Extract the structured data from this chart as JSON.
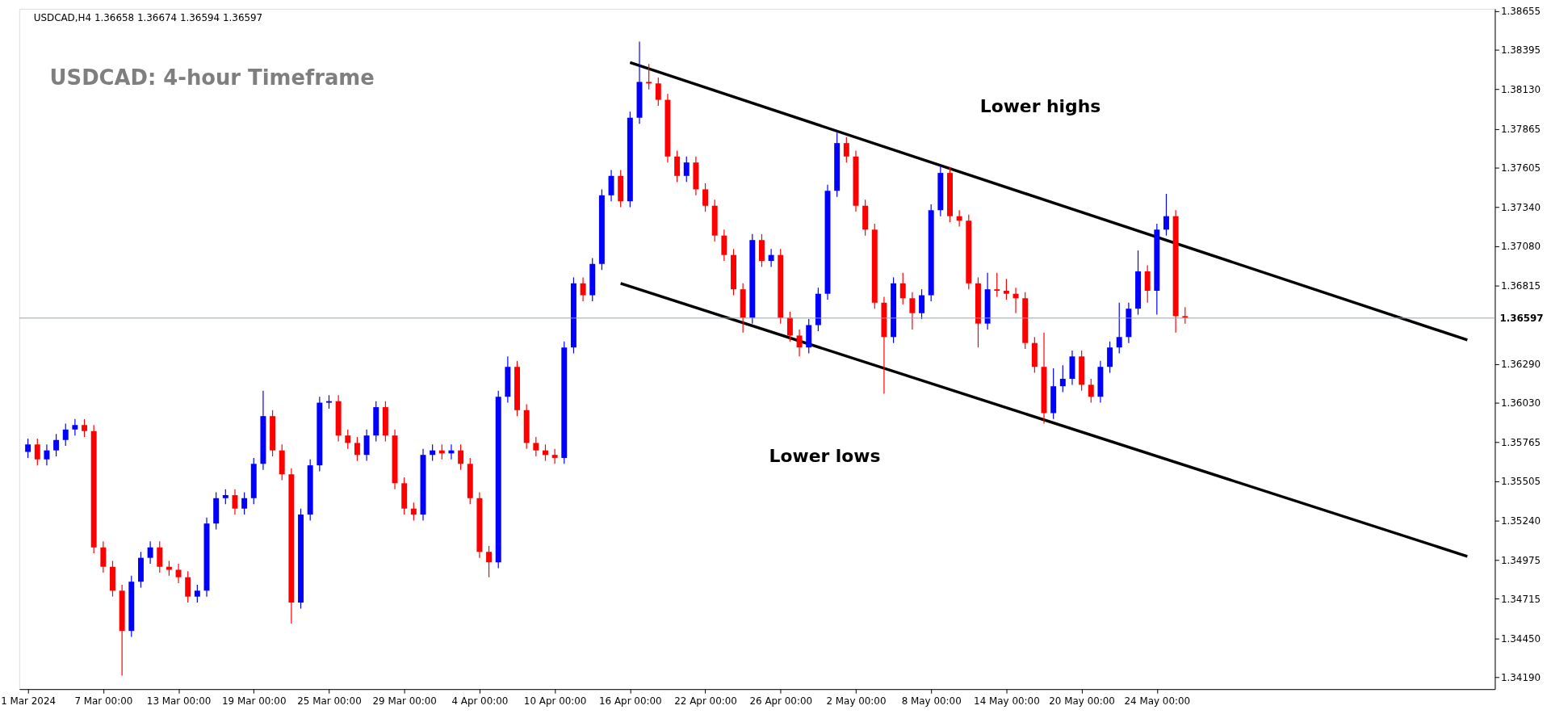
{
  "chart_data": {
    "type": "candlestick",
    "title": "USDCAD: 4-hour Timeframe",
    "annotations": [
      "USDCAD,H4  1.36658 1.36674 1.36594 1.36597",
      "Lower highs",
      "Lower lows"
    ],
    "categories": [
      "1 Mar 2024",
      null,
      null,
      null,
      null,
      null,
      null,
      null,
      "7 Mar 00:00",
      null,
      null,
      null,
      null,
      null,
      null,
      null,
      "13 Mar 00:00",
      null,
      null,
      null,
      null,
      null,
      null,
      null,
      "19 Mar 00:00",
      null,
      null,
      null,
      null,
      null,
      null,
      null,
      "25 Mar 00:00",
      null,
      null,
      null,
      null,
      null,
      null,
      null,
      "29 Mar 00:00",
      null,
      null,
      null,
      null,
      null,
      null,
      null,
      "4 Apr 00:00",
      null,
      null,
      null,
      null,
      null,
      null,
      null,
      "10 Apr 00:00",
      null,
      null,
      null,
      null,
      null,
      null,
      null,
      "16 Apr 00:00",
      null,
      null,
      null,
      null,
      null,
      null,
      null,
      "22 Apr 00:00",
      null,
      null,
      null,
      null,
      null,
      null,
      null,
      "26 Apr 00:00",
      null,
      null,
      null,
      null,
      null,
      null,
      null,
      "2 May 00:00",
      null,
      null,
      null,
      null,
      null,
      null,
      null,
      "8 May 00:00",
      null,
      null,
      null,
      null,
      null,
      null,
      null,
      "14 May 00:00",
      null,
      null,
      null,
      null,
      null,
      null,
      null,
      "20 May 00:00",
      null,
      null,
      null,
      null,
      null,
      null,
      null,
      "24 May 00:00",
      null,
      null,
      null,
      null,
      null,
      null,
      null,
      null,
      null,
      null,
      null,
      null,
      null,
      null,
      null,
      null,
      null,
      null,
      null,
      null,
      null,
      null,
      null,
      null,
      null,
      null,
      null,
      null,
      null,
      null,
      null,
      null,
      null,
      null,
      null
    ],
    "ohlc": [
      [
        1.357,
        1.3579,
        1.3566,
        1.3575
      ],
      [
        1.3575,
        1.3579,
        1.3561,
        1.3565
      ],
      [
        1.3565,
        1.3575,
        1.3561,
        1.3571
      ],
      [
        1.3571,
        1.3582,
        1.3567,
        1.3578
      ],
      [
        1.3578,
        1.3589,
        1.3574,
        1.3585
      ],
      [
        1.3585,
        1.3592,
        1.3581,
        1.3588
      ],
      [
        1.3588,
        1.3592,
        1.358,
        1.3584
      ],
      [
        1.3584,
        1.3588,
        1.3502,
        1.3506
      ],
      [
        1.3506,
        1.351,
        1.3489,
        1.3493
      ],
      [
        1.3493,
        1.3497,
        1.3473,
        1.3477
      ],
      [
        1.3477,
        1.3481,
        1.342,
        1.345
      ],
      [
        1.345,
        1.3487,
        1.3446,
        1.3483
      ],
      [
        1.3483,
        1.3503,
        1.3479,
        1.3499
      ],
      [
        1.3499,
        1.351,
        1.3495,
        1.3506
      ],
      [
        1.3506,
        1.351,
        1.3489,
        1.3493
      ],
      [
        1.3493,
        1.3497,
        1.3487,
        1.3491
      ],
      [
        1.3491,
        1.3495,
        1.3482,
        1.3486
      ],
      [
        1.3486,
        1.349,
        1.3469,
        1.3473
      ],
      [
        1.3473,
        1.3481,
        1.3469,
        1.3477
      ],
      [
        1.3477,
        1.3526,
        1.3473,
        1.3522
      ],
      [
        1.3522,
        1.3543,
        1.3518,
        1.3539
      ],
      [
        1.3539,
        1.3545,
        1.3535,
        1.3541
      ],
      [
        1.3541,
        1.3545,
        1.3528,
        1.3532
      ],
      [
        1.3532,
        1.3543,
        1.3528,
        1.3539
      ],
      [
        1.3539,
        1.3566,
        1.3535,
        1.3562
      ],
      [
        1.3562,
        1.3611,
        1.3558,
        1.3594
      ],
      [
        1.3594,
        1.3598,
        1.3567,
        1.3571
      ],
      [
        1.3571,
        1.3575,
        1.3551,
        1.3555
      ],
      [
        1.3555,
        1.3559,
        1.3455,
        1.3469
      ],
      [
        1.3469,
        1.3532,
        1.3465,
        1.3528
      ],
      [
        1.3528,
        1.3565,
        1.3524,
        1.3561
      ],
      [
        1.3561,
        1.3607,
        1.3557,
        1.3603
      ],
      [
        1.3603,
        1.3608,
        1.3599,
        1.3604
      ],
      [
        1.3604,
        1.3608,
        1.3577,
        1.3581
      ],
      [
        1.3581,
        1.3585,
        1.3572,
        1.3576
      ],
      [
        1.3576,
        1.358,
        1.3564,
        1.3568
      ],
      [
        1.3568,
        1.3585,
        1.3564,
        1.3581
      ],
      [
        1.3581,
        1.3604,
        1.3577,
        1.36
      ],
      [
        1.36,
        1.3604,
        1.3577,
        1.3581
      ],
      [
        1.3581,
        1.3585,
        1.3545,
        1.3549
      ],
      [
        1.3549,
        1.3553,
        1.3528,
        1.3532
      ],
      [
        1.3532,
        1.3536,
        1.3524,
        1.3528
      ],
      [
        1.3528,
        1.3572,
        1.3524,
        1.3568
      ],
      [
        1.3568,
        1.3575,
        1.3564,
        1.3571
      ],
      [
        1.3571,
        1.3575,
        1.3565,
        1.3569
      ],
      [
        1.3569,
        1.3575,
        1.3565,
        1.3571
      ],
      [
        1.3571,
        1.3575,
        1.3558,
        1.3562
      ],
      [
        1.3562,
        1.3566,
        1.3535,
        1.3539
      ],
      [
        1.3539,
        1.3543,
        1.3499,
        1.3503
      ],
      [
        1.3503,
        1.3507,
        1.3486,
        1.3496
      ],
      [
        1.3496,
        1.3611,
        1.3492,
        1.3607
      ],
      [
        1.3607,
        1.3634,
        1.3603,
        1.3627
      ],
      [
        1.3627,
        1.3631,
        1.3594,
        1.3598
      ],
      [
        1.3598,
        1.3602,
        1.3572,
        1.3576
      ],
      [
        1.3576,
        1.358,
        1.3567,
        1.3571
      ],
      [
        1.3571,
        1.3575,
        1.3564,
        1.3568
      ],
      [
        1.3568,
        1.3572,
        1.3562,
        1.3566
      ],
      [
        1.3566,
        1.3644,
        1.3562,
        1.364
      ],
      [
        1.364,
        1.3687,
        1.3636,
        1.3683
      ],
      [
        1.3683,
        1.3687,
        1.3671,
        1.3675
      ],
      [
        1.3675,
        1.37,
        1.3671,
        1.3696
      ],
      [
        1.3696,
        1.3746,
        1.3692,
        1.3742
      ],
      [
        1.3742,
        1.3759,
        1.3738,
        1.3755
      ],
      [
        1.3755,
        1.3759,
        1.3734,
        1.3738
      ],
      [
        1.3738,
        1.3798,
        1.3734,
        1.3794
      ],
      [
        1.3794,
        1.3845,
        1.379,
        1.3818
      ],
      [
        1.3818,
        1.383,
        1.3813,
        1.3817
      ],
      [
        1.3817,
        1.3821,
        1.3802,
        1.3806
      ],
      [
        1.3806,
        1.381,
        1.3764,
        1.3768
      ],
      [
        1.3768,
        1.3772,
        1.3751,
        1.3755
      ],
      [
        1.3755,
        1.3768,
        1.3751,
        1.3764
      ],
      [
        1.3764,
        1.3768,
        1.3742,
        1.3746
      ],
      [
        1.3746,
        1.375,
        1.3731,
        1.3735
      ],
      [
        1.3735,
        1.3739,
        1.3711,
        1.3715
      ],
      [
        1.3715,
        1.3719,
        1.3698,
        1.3702
      ],
      [
        1.3702,
        1.3706,
        1.3675,
        1.3679
      ],
      [
        1.3679,
        1.3683,
        1.365,
        1.366
      ],
      [
        1.366,
        1.3716,
        1.3656,
        1.3712
      ],
      [
        1.3712,
        1.3716,
        1.3694,
        1.3698
      ],
      [
        1.3698,
        1.3706,
        1.3694,
        1.3702
      ],
      [
        1.3702,
        1.3706,
        1.3656,
        1.366
      ],
      [
        1.366,
        1.3664,
        1.3644,
        1.3648
      ],
      [
        1.3648,
        1.3652,
        1.3634,
        1.364
      ],
      [
        1.364,
        1.3659,
        1.3636,
        1.3655
      ],
      [
        1.3655,
        1.368,
        1.3651,
        1.3676
      ],
      [
        1.3676,
        1.3749,
        1.3672,
        1.3745
      ],
      [
        1.3745,
        1.3784,
        1.3741,
        1.3777
      ],
      [
        1.3777,
        1.3781,
        1.3764,
        1.3768
      ],
      [
        1.3768,
        1.3772,
        1.3731,
        1.3735
      ],
      [
        1.3735,
        1.3739,
        1.3715,
        1.3719
      ],
      [
        1.3719,
        1.3723,
        1.3666,
        1.367
      ],
      [
        1.367,
        1.3674,
        1.3609,
        1.3647
      ],
      [
        1.3647,
        1.3687,
        1.3643,
        1.3683
      ],
      [
        1.3683,
        1.369,
        1.3669,
        1.3673
      ],
      [
        1.3673,
        1.3677,
        1.3652,
        1.3663
      ],
      [
        1.3663,
        1.3679,
        1.3659,
        1.3675
      ],
      [
        1.3675,
        1.3736,
        1.3671,
        1.3732
      ],
      [
        1.3732,
        1.3762,
        1.3728,
        1.3757
      ],
      [
        1.3757,
        1.3761,
        1.3724,
        1.3728
      ],
      [
        1.3728,
        1.3732,
        1.3721,
        1.3725
      ],
      [
        1.3725,
        1.3729,
        1.3679,
        1.3683
      ],
      [
        1.3683,
        1.3687,
        1.364,
        1.3656
      ],
      [
        1.3656,
        1.369,
        1.3652,
        1.3679
      ],
      [
        1.3679,
        1.369,
        1.3674,
        1.3678
      ],
      [
        1.3678,
        1.3686,
        1.3672,
        1.3676
      ],
      [
        1.3676,
        1.368,
        1.3663,
        1.3673
      ],
      [
        1.3673,
        1.3677,
        1.3639,
        1.3643
      ],
      [
        1.3643,
        1.3647,
        1.3623,
        1.3627
      ],
      [
        1.3627,
        1.365,
        1.3589,
        1.3596
      ],
      [
        1.3596,
        1.3626,
        1.3592,
        1.3614
      ],
      [
        1.3614,
        1.3628,
        1.361,
        1.3619
      ],
      [
        1.3619,
        1.3638,
        1.3615,
        1.3634
      ],
      [
        1.3634,
        1.3638,
        1.3611,
        1.3615
      ],
      [
        1.3615,
        1.3619,
        1.3603,
        1.3607
      ],
      [
        1.3607,
        1.3631,
        1.3603,
        1.3627
      ],
      [
        1.3627,
        1.3644,
        1.3623,
        1.364
      ],
      [
        1.364,
        1.367,
        1.3636,
        1.3647
      ],
      [
        1.3647,
        1.367,
        1.3643,
        1.3666
      ],
      [
        1.3666,
        1.3705,
        1.3662,
        1.3691
      ],
      [
        1.3691,
        1.3695,
        1.367,
        1.3678
      ],
      [
        1.3678,
        1.3723,
        1.3662,
        1.3719
      ],
      [
        1.3719,
        1.3743,
        1.3715,
        1.3728
      ],
      [
        1.3728,
        1.3732,
        1.365,
        1.3661
      ],
      [
        1.3661,
        1.3667,
        1.3656,
        1.366
      ],
      null,
      null,
      null,
      null,
      null,
      null,
      null,
      null,
      null,
      null,
      null,
      null,
      null,
      null,
      null,
      null,
      null,
      null,
      null,
      null,
      null,
      null,
      null,
      null,
      null,
      null,
      null,
      null,
      null,
      null,
      null,
      null
    ],
    "colors": [
      "#0000ff",
      "#ff0000",
      "#0000ff",
      "#0000ff",
      "#0000ff",
      "#0000ff",
      "#ff0000",
      "#ff0000",
      "#ff0000",
      "#ff0000",
      "#ff0000",
      "#0000ff",
      "#0000ff",
      "#0000ff",
      "#ff0000",
      "#ff0000",
      "#ff0000",
      "#ff0000",
      "#0000ff",
      "#0000ff",
      "#0000ff",
      "#0000ff",
      "#ff0000",
      "#0000ff",
      "#0000ff",
      "#0000ff",
      "#ff0000",
      "#ff0000",
      "#ff0000",
      "#0000ff",
      "#0000ff",
      "#0000ff",
      "#0000ff",
      "#ff0000",
      "#ff0000",
      "#ff0000",
      "#0000ff",
      "#0000ff",
      "#ff0000",
      "#ff0000",
      "#ff0000",
      "#ff0000",
      "#0000ff",
      "#0000ff",
      "#ff0000",
      "#0000ff",
      "#ff0000",
      "#ff0000",
      "#ff0000",
      "#ff0000",
      "#0000ff",
      "#0000ff",
      "#ff0000",
      "#ff0000",
      "#ff0000",
      "#ff0000",
      "#ff0000",
      "#0000ff",
      "#0000ff",
      "#ff0000",
      "#0000ff",
      "#0000ff",
      "#0000ff",
      "#ff0000",
      "#0000ff",
      "#0000ff",
      "#ff0000",
      "#ff0000",
      "#ff0000",
      "#ff0000",
      "#0000ff",
      "#ff0000",
      "#ff0000",
      "#ff0000",
      "#ff0000",
      "#ff0000",
      "#ff0000",
      "#0000ff",
      "#ff0000",
      "#0000ff",
      "#ff0000",
      "#ff0000",
      "#ff0000",
      "#0000ff",
      "#0000ff",
      "#0000ff",
      "#0000ff",
      "#ff0000",
      "#ff0000",
      "#ff0000",
      "#ff0000",
      "#ff0000",
      "#0000ff",
      "#ff0000",
      "#ff0000",
      "#0000ff",
      "#0000ff",
      "#0000ff",
      "#ff0000",
      "#ff0000",
      "#ff0000",
      "#ff0000",
      "#0000ff",
      "#ff0000",
      "#ff0000",
      "#ff0000",
      "#ff0000",
      "#ff0000",
      "#ff0000",
      "#0000ff",
      "#0000ff",
      "#0000ff",
      "#ff0000",
      "#ff0000",
      "#0000ff",
      "#0000ff",
      "#0000ff",
      "#0000ff",
      "#0000ff",
      "#ff0000",
      "#0000ff",
      "#0000ff",
      "#ff0000",
      "#ff0000",
      null,
      null,
      null,
      null,
      null,
      null,
      null,
      null,
      null,
      null,
      null,
      null,
      null,
      null,
      null,
      null,
      null,
      null,
      null,
      null,
      null,
      null,
      null,
      null,
      null,
      null,
      null,
      null,
      null,
      null,
      null,
      null
    ],
    "series": [
      {
        "type": "line",
        "color": "#000000",
        "values": [
          null,
          null,
          null,
          null,
          null,
          null,
          null,
          null,
          null,
          null,
          null,
          null,
          null,
          null,
          null,
          null,
          null,
          null,
          null,
          null,
          null,
          null,
          null,
          null,
          null,
          null,
          null,
          null,
          null,
          null,
          null,
          null,
          null,
          null,
          null,
          null,
          null,
          null,
          null,
          null,
          null,
          null,
          null,
          null,
          null,
          null,
          null,
          null,
          null,
          null,
          null,
          null,
          null,
          null,
          null,
          null,
          null,
          null,
          null,
          null,
          null,
          null,
          null,
          null,
          1.3831,
          null,
          null,
          null,
          null,
          null,
          null,
          null,
          null,
          null,
          null,
          null,
          null,
          null,
          null,
          null,
          null,
          null,
          null,
          null,
          null,
          null,
          null,
          null,
          null,
          null,
          null,
          null,
          null,
          null,
          null,
          null,
          null,
          null,
          null,
          null,
          null,
          null,
          null,
          null,
          null,
          null,
          null,
          null,
          null,
          null,
          null,
          null,
          null,
          null,
          null,
          null,
          null,
          null,
          null,
          null,
          null,
          null,
          null,
          null,
          null,
          null,
          null,
          null,
          null,
          null,
          null,
          null,
          null,
          null,
          null,
          null,
          null,
          null,
          null,
          null,
          null,
          null,
          null,
          null,
          null,
          null,
          null,
          null,
          null,
          null,
          null,
          null,
          null,
          1.3645,
          null,
          null
        ]
      },
      {
        "type": "line",
        "color": "#000000",
        "values": [
          null,
          null,
          null,
          null,
          null,
          null,
          null,
          null,
          null,
          null,
          null,
          null,
          null,
          null,
          null,
          null,
          null,
          null,
          null,
          null,
          null,
          null,
          null,
          null,
          null,
          null,
          null,
          null,
          null,
          null,
          null,
          null,
          null,
          null,
          null,
          null,
          null,
          null,
          null,
          null,
          null,
          null,
          null,
          null,
          null,
          null,
          null,
          null,
          null,
          null,
          null,
          null,
          null,
          null,
          null,
          null,
          null,
          null,
          null,
          null,
          null,
          null,
          null,
          1.3683,
          null,
          null,
          null,
          null,
          null,
          null,
          null,
          null,
          null,
          null,
          null,
          null,
          null,
          null,
          null,
          null,
          null,
          null,
          null,
          null,
          null,
          null,
          null,
          null,
          null,
          null,
          null,
          null,
          null,
          null,
          null,
          null,
          null,
          null,
          null,
          null,
          null,
          null,
          null,
          null,
          null,
          null,
          null,
          null,
          null,
          null,
          null,
          null,
          null,
          null,
          null,
          null,
          null,
          null,
          null,
          null,
          null,
          null,
          null,
          null,
          null,
          null,
          null,
          null,
          null,
          null,
          null,
          null,
          null,
          null,
          null,
          null,
          null,
          null,
          null,
          null,
          null,
          null,
          null,
          null,
          null,
          null,
          null,
          null,
          null,
          null,
          null,
          null,
          null,
          1.35,
          null,
          null
        ]
      }
    ],
    "ref_lines": [
      {
        "axis": "y",
        "value": 1.36597,
        "label": "1.36597",
        "color": "#8fa3b8"
      }
    ],
    "ylim": [
      1.3411,
      1.3867
    ],
    "yticks": [
      {
        "value": 1.3419,
        "label": "1.34190"
      },
      {
        "value": 1.3445,
        "label": "1.34450"
      },
      1.34715,
      1.34975,
      {
        "value": 1.3524,
        "label": "1.35240"
      },
      1.35505,
      1.35765,
      {
        "value": 1.3603,
        "label": "1.36030"
      },
      {
        "value": 1.3629,
        "label": "1.36290"
      },
      1.36815,
      {
        "value": 1.3708,
        "label": "1.37080"
      },
      {
        "value": 1.3734,
        "label": "1.37340"
      },
      1.37605,
      1.37865,
      {
        "value": 1.3813,
        "label": "1.38130"
      },
      1.38395,
      1.38655
    ],
    "grid": false
  }
}
